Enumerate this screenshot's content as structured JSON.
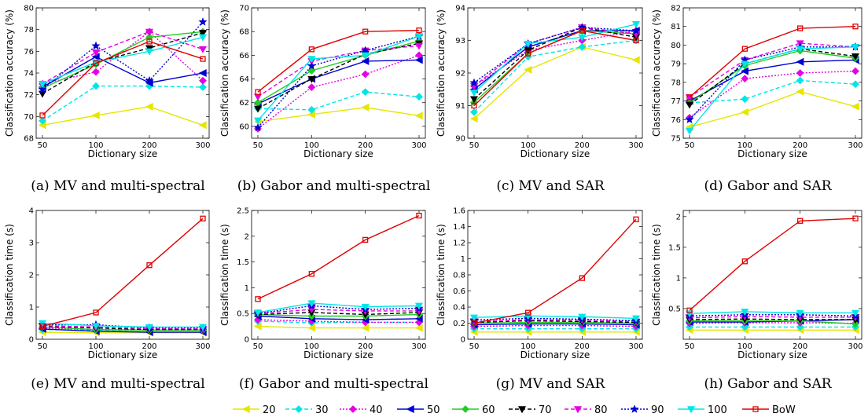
{
  "legend": [
    "20",
    "30",
    "40",
    "50",
    "60",
    "70",
    "80",
    "90",
    "100",
    "BoW"
  ],
  "series_style": [
    {
      "name": "20",
      "color": "#e6e600",
      "marker": "triangle-left",
      "dash": ""
    },
    {
      "name": "30",
      "color": "#00e5e5",
      "marker": "diamond",
      "dash": "5,3"
    },
    {
      "name": "40",
      "color": "#e500e5",
      "marker": "diamond",
      "dash": "2,2"
    },
    {
      "name": "50",
      "color": "#0000d0",
      "marker": "triangle-left",
      "dash": ""
    },
    {
      "name": "60",
      "color": "#22cc22",
      "marker": "diamond",
      "dash": ""
    },
    {
      "name": "70",
      "color": "#000000",
      "marker": "triangle-down",
      "dash": "5,3"
    },
    {
      "name": "80",
      "color": "#e500e5",
      "marker": "triangle-down",
      "dash": "5,3"
    },
    {
      "name": "90",
      "color": "#0000d0",
      "marker": "star",
      "dash": "2,2"
    },
    {
      "name": "100",
      "color": "#00e5e5",
      "marker": "triangle-down",
      "dash": ""
    },
    {
      "name": "BoW",
      "color": "#e00000",
      "marker": "square",
      "dash": ""
    }
  ],
  "chart_data": [
    {
      "type": "line",
      "caption": "(a) MV and multi-spectral",
      "xlabel": "Dictionary size",
      "ylabel": "Classification accuracy (%)",
      "categories": [
        "50",
        "100",
        "200",
        "300"
      ],
      "ylim": [
        68,
        80
      ],
      "yticks": [
        "68",
        "70",
        "72",
        "74",
        "76",
        "78",
        "80"
      ],
      "series": [
        {
          "name": "20",
          "values": [
            69.2,
            70.1,
            70.9,
            69.2
          ]
        },
        {
          "name": "30",
          "values": [
            69.6,
            72.8,
            72.8,
            72.7
          ]
        },
        {
          "name": "40",
          "values": [
            73.0,
            74.1,
            77.8,
            73.3
          ]
        },
        {
          "name": "50",
          "values": [
            72.7,
            75.5,
            73.1,
            74.0
          ]
        },
        {
          "name": "60",
          "values": [
            72.6,
            74.8,
            77.3,
            77.8
          ]
        },
        {
          "name": "70",
          "values": [
            72.1,
            75.0,
            76.3,
            77.7
          ]
        },
        {
          "name": "80",
          "values": [
            73.0,
            75.9,
            77.8,
            76.2
          ]
        },
        {
          "name": "90",
          "values": [
            72.5,
            76.5,
            73.3,
            78.7
          ]
        },
        {
          "name": "100",
          "values": [
            73.0,
            75.0,
            76.0,
            77.3
          ]
        },
        {
          "name": "BoW",
          "values": [
            70.1,
            74.9,
            76.9,
            75.3
          ]
        }
      ]
    },
    {
      "type": "line",
      "caption": "(b) Gabor and multi-spectral",
      "xlabel": "Dictionary size",
      "ylabel": "Classification accuracy (%)",
      "categories": [
        "50",
        "100",
        "200",
        "300"
      ],
      "ylim": [
        59,
        70
      ],
      "yticks": [
        "60",
        "62",
        "64",
        "66",
        "68",
        "70"
      ],
      "series": [
        {
          "name": "20",
          "values": [
            60.4,
            61.0,
            61.6,
            60.9
          ]
        },
        {
          "name": "30",
          "values": [
            61.5,
            61.4,
            62.9,
            62.5
          ]
        },
        {
          "name": "40",
          "values": [
            59.8,
            63.3,
            64.4,
            66.0
          ]
        },
        {
          "name": "50",
          "values": [
            61.9,
            64.0,
            65.5,
            65.6
          ]
        },
        {
          "name": "60",
          "values": [
            62.0,
            64.7,
            66.0,
            67.2
          ]
        },
        {
          "name": "70",
          "values": [
            61.5,
            64.0,
            66.1,
            67.0
          ]
        },
        {
          "name": "80",
          "values": [
            62.5,
            65.5,
            66.4,
            66.8
          ]
        },
        {
          "name": "90",
          "values": [
            59.9,
            65.1,
            66.4,
            67.6
          ]
        },
        {
          "name": "100",
          "values": [
            60.5,
            65.7,
            66.0,
            67.6
          ]
        },
        {
          "name": "BoW",
          "values": [
            62.9,
            66.5,
            68.0,
            68.1
          ]
        }
      ]
    },
    {
      "type": "line",
      "caption": "(c) MV and SAR",
      "xlabel": "Dictionary size",
      "ylabel": "Classification accuracy (%)",
      "categories": [
        "50",
        "100",
        "200",
        "300"
      ],
      "ylim": [
        90,
        94
      ],
      "yticks": [
        "90",
        "91",
        "92",
        "93",
        "94"
      ],
      "series": [
        {
          "name": "20",
          "values": [
            90.6,
            92.1,
            92.8,
            92.4
          ]
        },
        {
          "name": "30",
          "values": [
            90.8,
            92.5,
            92.8,
            93.0
          ]
        },
        {
          "name": "40",
          "values": [
            91.6,
            92.7,
            93.0,
            93.3
          ]
        },
        {
          "name": "50",
          "values": [
            91.5,
            92.8,
            93.3,
            93.3
          ]
        },
        {
          "name": "60",
          "values": [
            91.1,
            92.6,
            93.3,
            93.2
          ]
        },
        {
          "name": "70",
          "values": [
            91.2,
            92.7,
            93.4,
            93.1
          ]
        },
        {
          "name": "80",
          "values": [
            91.6,
            92.9,
            93.4,
            93.2
          ]
        },
        {
          "name": "90",
          "values": [
            91.7,
            92.9,
            93.4,
            93.3
          ]
        },
        {
          "name": "100",
          "values": [
            91.4,
            92.9,
            93.1,
            93.5
          ]
        },
        {
          "name": "BoW",
          "values": [
            91.0,
            92.6,
            93.3,
            93.0
          ]
        }
      ]
    },
    {
      "type": "line",
      "caption": "(d) Gabor and SAR",
      "xlabel": "Dictionary size",
      "ylabel": "Classification accuracy (%)",
      "categories": [
        "50",
        "100",
        "200",
        "300"
      ],
      "ylim": [
        75,
        82
      ],
      "yticks": [
        "75",
        "76",
        "77",
        "78",
        "79",
        "80",
        "81",
        "82"
      ],
      "series": [
        {
          "name": "20",
          "values": [
            75.6,
            76.4,
            77.5,
            76.7
          ]
        },
        {
          "name": "30",
          "values": [
            76.9,
            77.1,
            78.1,
            77.9
          ]
        },
        {
          "name": "40",
          "values": [
            76.1,
            78.2,
            78.5,
            78.6
          ]
        },
        {
          "name": "50",
          "values": [
            77.0,
            78.6,
            79.1,
            79.2
          ]
        },
        {
          "name": "60",
          "values": [
            76.9,
            78.9,
            79.7,
            79.3
          ]
        },
        {
          "name": "70",
          "values": [
            76.8,
            79.0,
            79.8,
            79.4
          ]
        },
        {
          "name": "80",
          "values": [
            77.2,
            79.2,
            80.1,
            79.9
          ]
        },
        {
          "name": "90",
          "values": [
            76.0,
            79.2,
            79.9,
            79.9
          ]
        },
        {
          "name": "100",
          "values": [
            75.4,
            79.0,
            79.8,
            79.9
          ]
        },
        {
          "name": "BoW",
          "values": [
            77.2,
            79.8,
            80.9,
            81.0
          ]
        }
      ]
    },
    {
      "type": "line",
      "caption": "(e) MV and multi-spectral",
      "xlabel": "Dictionary size",
      "ylabel": "Classification time (s)",
      "categories": [
        "50",
        "100",
        "200",
        "300"
      ],
      "ylim": [
        0,
        4
      ],
      "yticks": [
        "0",
        "1",
        "2",
        "3",
        "4"
      ],
      "series": [
        {
          "name": "20",
          "values": [
            0.22,
            0.2,
            0.2,
            0.2
          ]
        },
        {
          "name": "30",
          "values": [
            0.3,
            0.28,
            0.28,
            0.3
          ]
        },
        {
          "name": "40",
          "values": [
            0.35,
            0.3,
            0.3,
            0.3
          ]
        },
        {
          "name": "50",
          "values": [
            0.32,
            0.25,
            0.22,
            0.22
          ]
        },
        {
          "name": "60",
          "values": [
            0.38,
            0.3,
            0.28,
            0.28
          ]
        },
        {
          "name": "70",
          "values": [
            0.4,
            0.35,
            0.3,
            0.3
          ]
        },
        {
          "name": "80",
          "values": [
            0.42,
            0.38,
            0.33,
            0.32
          ]
        },
        {
          "name": "90",
          "values": [
            0.45,
            0.45,
            0.35,
            0.35
          ]
        },
        {
          "name": "100",
          "values": [
            0.5,
            0.42,
            0.38,
            0.38
          ]
        },
        {
          "name": "BoW",
          "values": [
            0.4,
            0.83,
            2.3,
            3.75
          ]
        }
      ]
    },
    {
      "type": "line",
      "caption": "(f) Gabor and multi-spectral",
      "xlabel": "Dictionary size",
      "ylabel": "Classification time (s)",
      "categories": [
        "50",
        "100",
        "200",
        "300"
      ],
      "ylim": [
        0,
        2.5
      ],
      "yticks": [
        "0",
        "0.5",
        "1",
        "1.5",
        "2",
        "2.5"
      ],
      "series": [
        {
          "name": "20",
          "values": [
            0.25,
            0.22,
            0.22,
            0.22
          ]
        },
        {
          "name": "30",
          "values": [
            0.35,
            0.32,
            0.33,
            0.33
          ]
        },
        {
          "name": "40",
          "values": [
            0.38,
            0.35,
            0.33,
            0.33
          ]
        },
        {
          "name": "50",
          "values": [
            0.45,
            0.4,
            0.38,
            0.4
          ]
        },
        {
          "name": "60",
          "values": [
            0.48,
            0.45,
            0.45,
            0.48
          ]
        },
        {
          "name": "70",
          "values": [
            0.48,
            0.52,
            0.48,
            0.52
          ]
        },
        {
          "name": "80",
          "values": [
            0.5,
            0.58,
            0.55,
            0.55
          ]
        },
        {
          "name": "90",
          "values": [
            0.5,
            0.65,
            0.58,
            0.6
          ]
        },
        {
          "name": "100",
          "values": [
            0.52,
            0.7,
            0.63,
            0.65
          ]
        },
        {
          "name": "BoW",
          "values": [
            0.78,
            1.27,
            1.93,
            2.4
          ]
        }
      ]
    },
    {
      "type": "line",
      "caption": "(g) MV and SAR",
      "xlabel": "Dictionary size",
      "ylabel": "Classification time (s)",
      "categories": [
        "50",
        "100",
        "200",
        "300"
      ],
      "ylim": [
        0,
        1.6
      ],
      "yticks": [
        "0",
        "0.2",
        "0.4",
        "0.6",
        "0.8",
        "1",
        "1.2",
        "1.4",
        "1.6"
      ],
      "series": [
        {
          "name": "20",
          "values": [
            0.09,
            0.09,
            0.09,
            0.09
          ]
        },
        {
          "name": "30",
          "values": [
            0.13,
            0.13,
            0.13,
            0.13
          ]
        },
        {
          "name": "40",
          "values": [
            0.16,
            0.17,
            0.17,
            0.16
          ]
        },
        {
          "name": "50",
          "values": [
            0.18,
            0.19,
            0.19,
            0.18
          ]
        },
        {
          "name": "60",
          "values": [
            0.2,
            0.21,
            0.21,
            0.2
          ]
        },
        {
          "name": "70",
          "values": [
            0.21,
            0.23,
            0.22,
            0.21
          ]
        },
        {
          "name": "80",
          "values": [
            0.22,
            0.24,
            0.24,
            0.22
          ]
        },
        {
          "name": "90",
          "values": [
            0.24,
            0.26,
            0.25,
            0.23
          ]
        },
        {
          "name": "100",
          "values": [
            0.27,
            0.29,
            0.28,
            0.26
          ]
        },
        {
          "name": "BoW",
          "values": [
            0.2,
            0.33,
            0.76,
            1.49
          ]
        }
      ]
    },
    {
      "type": "line",
      "caption": "(h) Gabor and SAR",
      "xlabel": "Dictionary size",
      "ylabel": "Classification time (s)",
      "categories": [
        "50",
        "100",
        "200",
        "300"
      ],
      "ylim": [
        0,
        2.1
      ],
      "yticks": [
        "0.5",
        "1",
        "1.5",
        "2"
      ],
      "series": [
        {
          "name": "20",
          "values": [
            0.15,
            0.15,
            0.15,
            0.15
          ]
        },
        {
          "name": "30",
          "values": [
            0.2,
            0.2,
            0.2,
            0.2
          ]
        },
        {
          "name": "40",
          "values": [
            0.26,
            0.27,
            0.27,
            0.26
          ]
        },
        {
          "name": "50",
          "values": [
            0.28,
            0.28,
            0.3,
            0.32
          ]
        },
        {
          "name": "60",
          "values": [
            0.3,
            0.3,
            0.3,
            0.25
          ]
        },
        {
          "name": "70",
          "values": [
            0.32,
            0.33,
            0.32,
            0.32
          ]
        },
        {
          "name": "80",
          "values": [
            0.35,
            0.37,
            0.36,
            0.36
          ]
        },
        {
          "name": "90",
          "values": [
            0.38,
            0.4,
            0.4,
            0.38
          ]
        },
        {
          "name": "100",
          "values": [
            0.42,
            0.45,
            0.43,
            0.43
          ]
        },
        {
          "name": "BoW",
          "values": [
            0.47,
            1.27,
            1.93,
            1.97
          ]
        }
      ]
    }
  ]
}
